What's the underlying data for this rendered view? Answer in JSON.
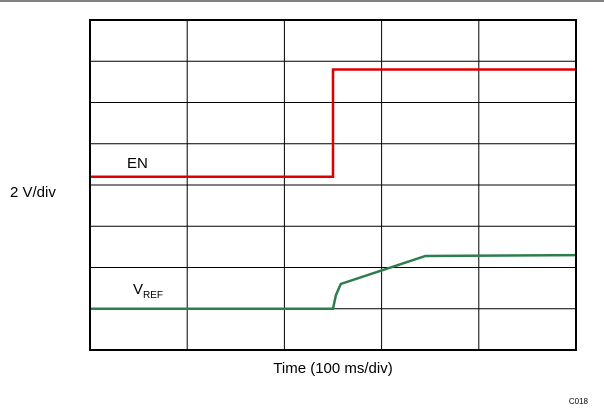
{
  "chart_data": {
    "type": "line",
    "y_scale_label": "2 V/div",
    "xlabel": "Time (100 ms/div)",
    "figure_id": "C018",
    "grid": true,
    "x_divisions": 5,
    "y_divisions": 8,
    "x_unit": "div",
    "y_unit": "div",
    "xlim": [
      0,
      5
    ],
    "ylim": [
      0,
      8
    ],
    "series": [
      {
        "name": "EN",
        "label_main": "V",
        "label_sub": "",
        "color": "#dd0000",
        "points": [
          [
            0,
            4.2
          ],
          [
            2.5,
            4.2
          ],
          [
            2.5,
            6.8
          ],
          [
            5,
            6.8
          ]
        ]
      },
      {
        "name": "VREF",
        "label_main": "V",
        "label_sub": "REF",
        "color": "#2e7d4f",
        "points": [
          [
            0,
            1.0
          ],
          [
            2.5,
            1.0
          ],
          [
            2.53,
            1.33
          ],
          [
            2.58,
            1.6
          ],
          [
            3.45,
            2.28
          ],
          [
            5,
            2.3
          ]
        ]
      }
    ],
    "labels": {
      "en": "EN",
      "vref_main": "V",
      "vref_sub": "REF"
    }
  }
}
